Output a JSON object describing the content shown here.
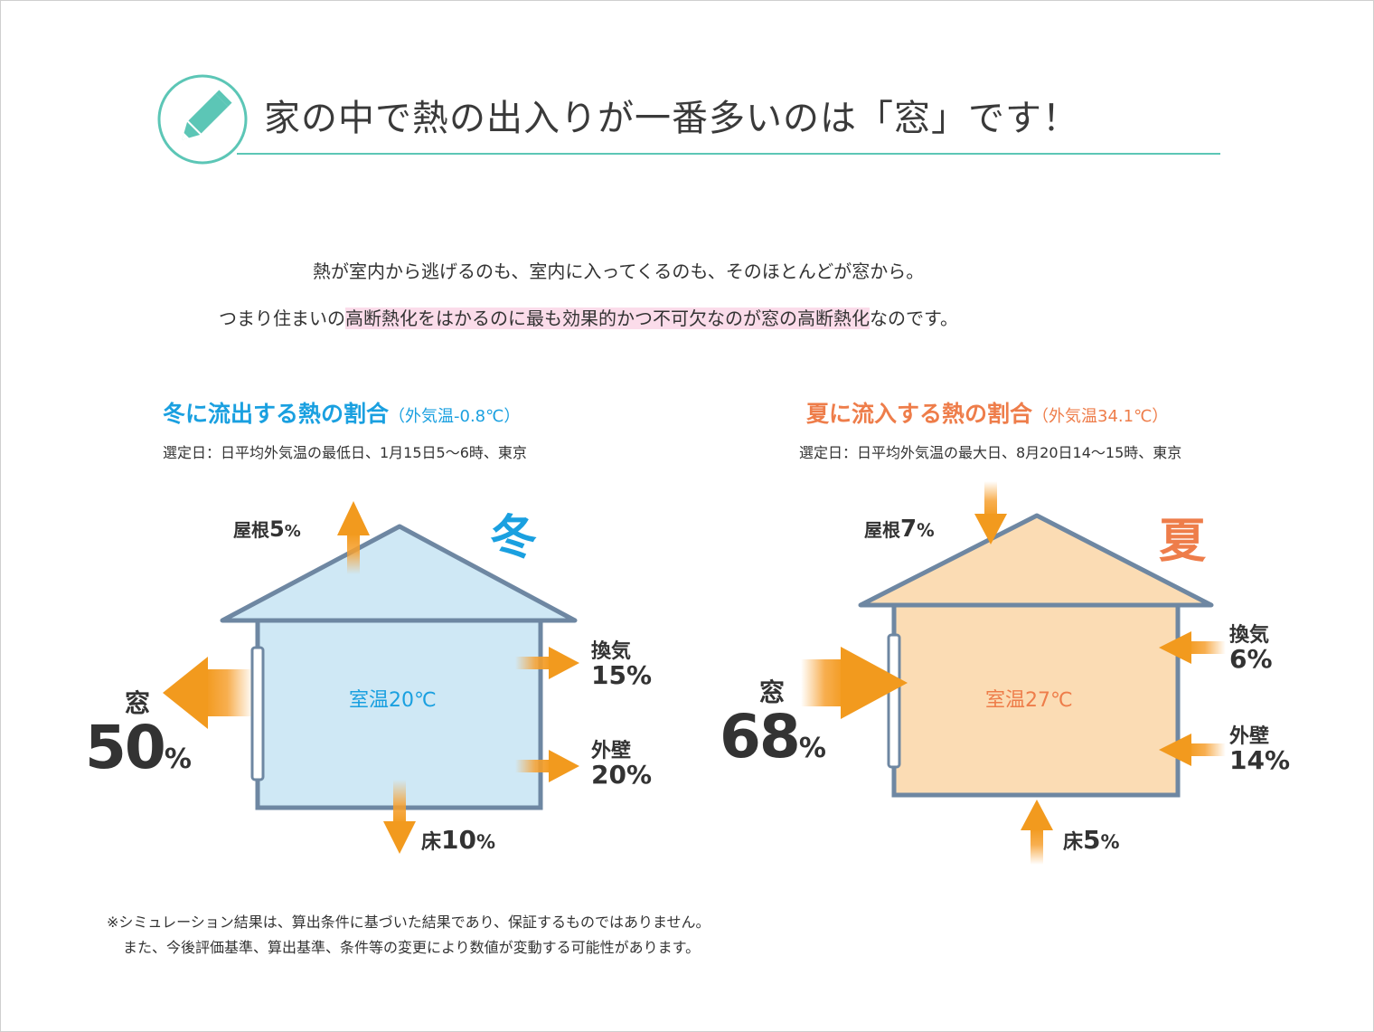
{
  "header": {
    "title": "家の中で熱の出入りが一番多いのは「窓」です！",
    "icon": "pencil-icon"
  },
  "intro": {
    "line1": "熱が室内から逃げるのも、室内に入ってくるのも、そのほとんどが窓から。",
    "line2_pre": "つまり住まいの",
    "line2_highlight": "高断熱化をはかるのに最も効果的かつ不可欠なのが窓の高断熱化",
    "line2_post": "なのです。"
  },
  "winter": {
    "title": "冬に流出する熱の割合",
    "subtitle": "（外気温-0.8℃）",
    "note": "選定日：日平均外気温の最低日、1月15日5〜6時、東京",
    "season_label": "冬",
    "room_temp": "室温20℃",
    "roof_label": "屋根",
    "roof_value": "5",
    "roof_unit": "%",
    "vent_label": "換気",
    "vent_value": "15%",
    "wall_label": "外壁",
    "wall_value": "20%",
    "floor_label": "床",
    "floor_value": "10",
    "floor_unit": "%",
    "window_label": "窓",
    "window_value": "50",
    "window_unit": "%",
    "color": "#1aa0e0",
    "fill": "#cfe8f5"
  },
  "summer": {
    "title": "夏に流入する熱の割合",
    "subtitle": "（外気温34.1℃）",
    "note": "選定日：日平均外気温の最大日、8月20日14〜15時、東京",
    "season_label": "夏",
    "room_temp": "室温27℃",
    "roof_label": "屋根",
    "roof_value": "7",
    "roof_unit": "%",
    "vent_label": "換気",
    "vent_value": "6%",
    "wall_label": "外壁",
    "wall_value": "14%",
    "floor_label": "床",
    "floor_value": "5",
    "floor_unit": "%",
    "window_label": "窓",
    "window_value": "68",
    "window_unit": "%",
    "color": "#ee7d4a",
    "fill": "#fbdcb4"
  },
  "footnote": {
    "line1": "※シミュレーション結果は、算出条件に基づいた結果であり、保証するものではありません。",
    "line2": "また、今後評価基準、算出基準、条件等の変更により数値が変動する可能性があります。"
  },
  "colors": {
    "accent": "#5cc6b6",
    "house_outline": "#6e87a2",
    "arrow": "#f29a1e"
  }
}
